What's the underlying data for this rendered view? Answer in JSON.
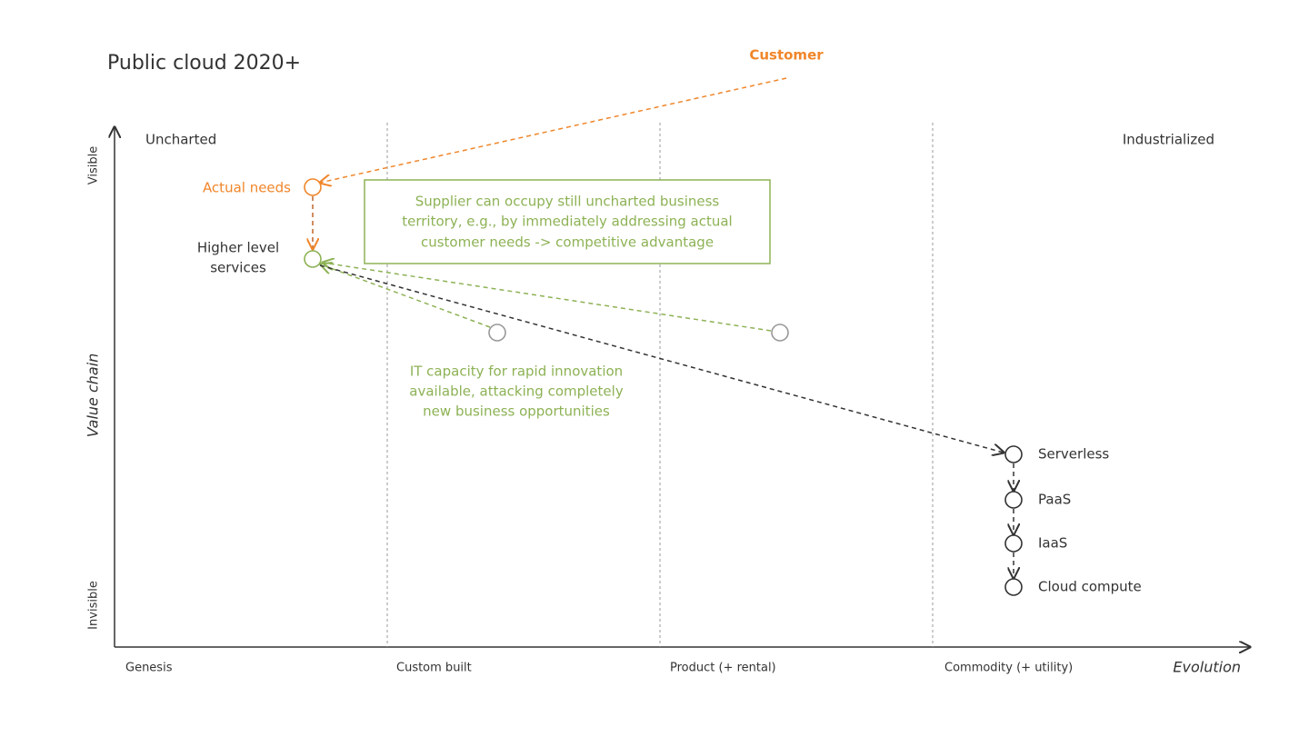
{
  "title": "Public cloud 2020+",
  "customer": "Customer",
  "axes": {
    "y_top": "Visible",
    "y_bottom": "Invisible",
    "y_label": "Value chain",
    "x_label": "Evolution"
  },
  "stages": [
    "Genesis",
    "Custom built",
    "Product (+ rental)",
    "Commodity (+ utility)"
  ],
  "regions": {
    "left": "Uncharted",
    "right": "Industrialized"
  },
  "nodes": {
    "actual_needs": "Actual needs",
    "higher_level": [
      "Higher level",
      "services"
    ],
    "serverless": "Serverless",
    "paas": "PaaS",
    "iaas": "IaaS",
    "cloud_compute": "Cloud compute"
  },
  "annotations": {
    "box": [
      "Supplier can occupy still uncharted business",
      "territory, e.g., by immediately addressing actual",
      "customer needs -> competitive advantage"
    ],
    "note": [
      "IT capacity for rapid innovation",
      "available, attacking completely",
      "new business opportunities"
    ]
  }
}
